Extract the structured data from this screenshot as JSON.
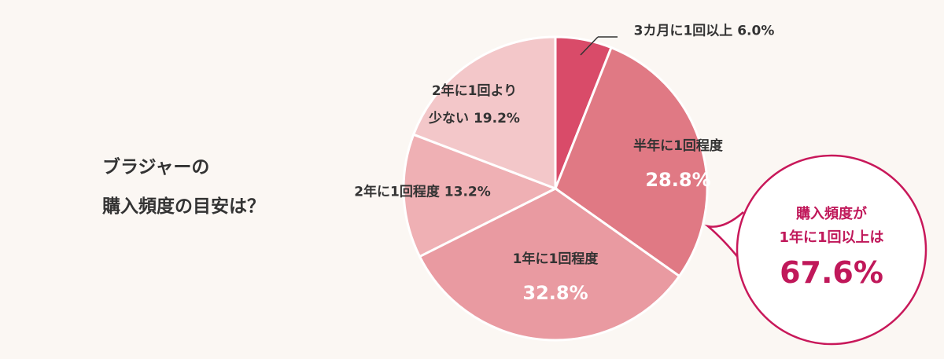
{
  "chart_data": {
    "type": "pie",
    "title": "ブラジャーの\n購入頻度の目安は？",
    "categories": [
      "3カ月に1回以上",
      "半年に1回程度",
      "1年に1回程度",
      "2年に1回程度",
      "2年に1回より\n少ない"
    ],
    "values": [
      6.0,
      28.8,
      32.8,
      13.2,
      19.2
    ],
    "value_labels": [
      "6.0%",
      "28.8%",
      "32.8%",
      "13.2%",
      "19.2%"
    ],
    "colors": [
      "#d94b69",
      "#e07984",
      "#e99aa1",
      "#efb0b4",
      "#f3c7c9"
    ],
    "annotation": {
      "text": "購入頻度が\n1年に1回以上は",
      "value": 67.6,
      "value_label": "67.6%"
    }
  }
}
